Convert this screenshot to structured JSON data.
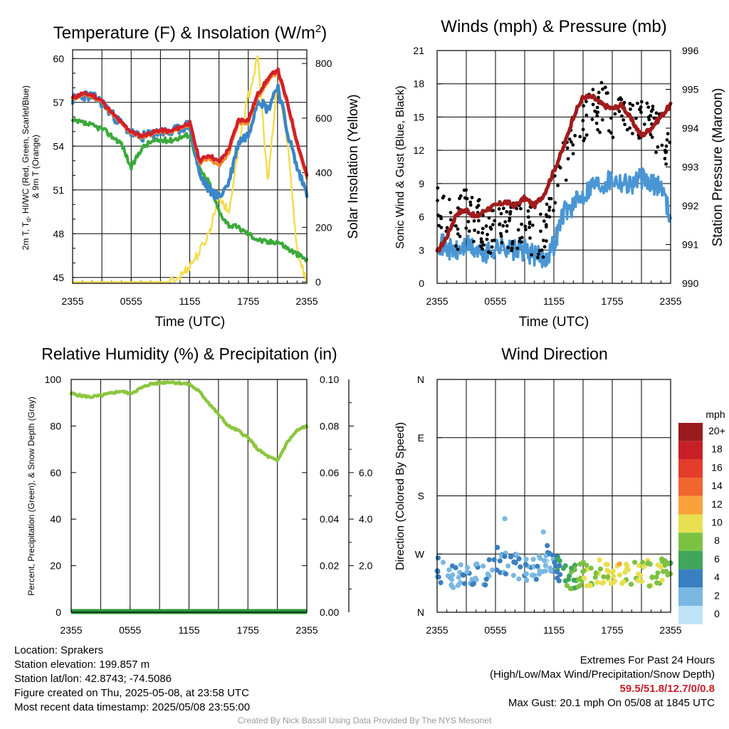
{
  "chart_data": [
    {
      "type": "line",
      "title": "Temperature (F) & Insolation (W/m²)",
      "xlabel": "Time (UTC)",
      "ylabel": "2m T, T_d, HI/WC (Red, Green, Scarlet/Blue) & 9m T (Orange)",
      "y2label": "Solar Insolation (Yellow)",
      "x_ticklabels": [
        "2355",
        "0555",
        "1155",
        "1755",
        "2355"
      ],
      "ylim": [
        44.6,
        60.6
      ],
      "y_ticks": [
        45,
        48,
        51,
        54,
        57,
        60
      ],
      "y2lim": [
        -5,
        850
      ],
      "y2_ticks": [
        0,
        200,
        400,
        600,
        800
      ],
      "x_hours": [
        0,
        1,
        2,
        3,
        4,
        5,
        6,
        7,
        8,
        9,
        10,
        11,
        12,
        13,
        14,
        15,
        16,
        17,
        18,
        19,
        20,
        21,
        22,
        23,
        24
      ],
      "series": [
        {
          "key": "t2m",
          "color": "#d2202a",
          "axis": "left",
          "values": [
            57.3,
            57.6,
            57.5,
            57.1,
            56.3,
            55.6,
            55.0,
            54.7,
            54.9,
            55.1,
            55.0,
            55.3,
            55.6,
            53.0,
            53.4,
            52.9,
            53.8,
            55.8,
            55.8,
            57.6,
            58.6,
            59.3,
            57.0,
            54.3,
            52.0
          ]
        },
        {
          "key": "t9m",
          "color": "#f28c28",
          "axis": "left",
          "values": [
            57.2,
            57.5,
            57.4,
            57.0,
            56.2,
            55.5,
            54.9,
            54.6,
            54.8,
            55.0,
            54.9,
            55.2,
            55.5,
            52.8,
            53.2,
            52.6,
            53.5,
            55.6,
            55.6,
            57.4,
            58.4,
            59.1,
            56.8,
            54.1,
            51.8
          ]
        },
        {
          "key": "hiwc",
          "color": "#3a86c8",
          "axis": "left",
          "values": [
            57.2,
            57.5,
            57.4,
            57.0,
            56.2,
            55.5,
            54.9,
            54.6,
            54.8,
            55.0,
            54.9,
            55.2,
            55.5,
            52.0,
            51.0,
            50.5,
            51.5,
            54.3,
            54.8,
            57.3,
            56.5,
            58.2,
            55.0,
            52.5,
            50.8
          ]
        },
        {
          "key": "td",
          "color": "#3aaa3a",
          "axis": "left",
          "values": [
            55.7,
            55.6,
            55.4,
            55.2,
            54.7,
            54.2,
            52.5,
            53.8,
            54.3,
            54.4,
            54.4,
            54.6,
            54.8,
            52.4,
            51.5,
            49.5,
            48.6,
            48.4,
            48.0,
            47.6,
            47.4,
            47.5,
            47.0,
            46.6,
            46.2
          ]
        },
        {
          "key": "solar",
          "color": "#f5dc50",
          "axis": "right",
          "values": [
            0,
            0,
            0,
            0,
            0,
            0,
            0,
            0,
            0,
            0,
            0,
            20,
            60,
            110,
            180,
            320,
            250,
            500,
            680,
            820,
            360,
            730,
            520,
            120,
            0
          ]
        }
      ]
    },
    {
      "type": "scatter",
      "title": "Winds (mph) & Pressure (mb)",
      "xlabel": "Time (UTC)",
      "ylabel": "Sonic Wind & Gust (Blue, Black)",
      "y2label": "Station Pressure (Maroon)",
      "x_ticklabels": [
        "2355",
        "0555",
        "1155",
        "1755",
        "2355"
      ],
      "ylim": [
        0,
        21
      ],
      "y_ticks": [
        0,
        3,
        6,
        9,
        12,
        15,
        18,
        21
      ],
      "y2lim": [
        990,
        996
      ],
      "y2_ticks": [
        990,
        991,
        992,
        993,
        994,
        995,
        996
      ],
      "x_hours": [
        0,
        1,
        2,
        3,
        4,
        5,
        6,
        7,
        8,
        9,
        10,
        11,
        12,
        13,
        14,
        15,
        16,
        17,
        18,
        19,
        20,
        21,
        22,
        23,
        24
      ],
      "series": [
        {
          "key": "wind",
          "color": "#4a96d4",
          "axis": "left",
          "values": [
            3.8,
            3.2,
            2.8,
            3.4,
            3.0,
            2.6,
            3.2,
            3.4,
            2.9,
            3.0,
            2.5,
            2.2,
            3.5,
            6.5,
            7.0,
            8.0,
            9.0,
            9.0,
            9.5,
            9.2,
            9.0,
            9.5,
            8.8,
            9.0,
            6.0
          ]
        },
        {
          "key": "gust",
          "color": "#000000",
          "axis": "left",
          "values": [
            6.5,
            5.5,
            5.0,
            7.0,
            5.5,
            5.0,
            4.5,
            5.5,
            5.0,
            5.0,
            4.5,
            4.0,
            7.5,
            11.0,
            13.0,
            15.0,
            15.5,
            16.0,
            14.5,
            15.0,
            14.0,
            14.5,
            15.0,
            13.0,
            12.0
          ]
        },
        {
          "key": "pressure",
          "color": "#a01c1c",
          "axis": "right",
          "values": [
            990.8,
            991.2,
            991.8,
            991.9,
            991.7,
            991.9,
            992.0,
            992.1,
            992.0,
            992.2,
            992.0,
            992.3,
            992.9,
            993.5,
            994.3,
            994.8,
            994.8,
            994.6,
            994.5,
            994.6,
            994.2,
            993.8,
            994.0,
            994.3,
            994.6
          ]
        }
      ]
    },
    {
      "type": "line",
      "title": "Relative Humidity (%) & Precipitation (in)",
      "ylabel": "Percent, Precipitation (Green), & Snow Depth (Gray)",
      "x_ticklabels": [
        "2355",
        "0555",
        "1155",
        "1755",
        "2355"
      ],
      "ylim": [
        0,
        100
      ],
      "y_ticks": [
        0,
        20,
        40,
        60,
        80,
        100
      ],
      "y2lim": [
        0,
        0.1
      ],
      "y2_ticklabels": [
        "0.00",
        "0.02",
        "0.04",
        "0.06",
        "0.08",
        "0.10"
      ],
      "y3lim": [
        0,
        10
      ],
      "y3_ticklabels": [
        "2.0",
        "4.0",
        "6.0"
      ],
      "x_hours": [
        0,
        1,
        2,
        3,
        4,
        5,
        6,
        7,
        8,
        9,
        10,
        11,
        12,
        13,
        14,
        15,
        16,
        17,
        18,
        19,
        20,
        21,
        22,
        23,
        24
      ],
      "series": [
        {
          "key": "rh",
          "color": "#8cc63f",
          "axis": "left",
          "values": [
            94,
            93,
            92.5,
            93,
            94,
            95,
            94,
            96,
            98,
            98.5,
            99,
            98.5,
            98,
            95,
            90,
            85,
            80,
            78,
            75,
            70,
            67,
            65,
            73,
            78,
            80
          ]
        },
        {
          "key": "precip",
          "color": "#2a9a3a",
          "axis": "right",
          "values": [
            0.0,
            0.0
          ]
        }
      ]
    },
    {
      "type": "scatter",
      "title": "Wind Direction",
      "ylabel": "Direction (Colored By Speed)",
      "x_ticklabels": [
        "2355",
        "0555",
        "1155",
        "1755",
        "2355"
      ],
      "y_ticklabels": [
        "N",
        "E",
        "S",
        "W",
        "N"
      ],
      "ylim": [
        0,
        360
      ],
      "colorbar": {
        "title": "mph",
        "labels": [
          "20+",
          "18",
          "16",
          "14",
          "12",
          "10",
          "8",
          "6",
          "4",
          "2",
          "0"
        ],
        "colors": [
          "#9a1a1e",
          "#c62026",
          "#e43d2c",
          "#f0662e",
          "#f9a23c",
          "#e8e050",
          "#7cc242",
          "#3fa65a",
          "#3a7fbf",
          "#7ab8e2",
          "#bfe3f7"
        ]
      },
      "x_hours": [
        0,
        1,
        2,
        3,
        4,
        5,
        6,
        7,
        8,
        9,
        10,
        11,
        12,
        13,
        14,
        15,
        16,
        17,
        18,
        19,
        20,
        21,
        22,
        23,
        24
      ],
      "dir_values": [
        292,
        300,
        310,
        300,
        305,
        300,
        275,
        285,
        290,
        290,
        295,
        275,
        285,
        300,
        305,
        300,
        300,
        298,
        300,
        298,
        297,
        298,
        300,
        296,
        295
      ],
      "speed_values": [
        3.5,
        3,
        2.5,
        3.5,
        3,
        2.5,
        2.5,
        3,
        2.8,
        2.8,
        2.5,
        2,
        3.5,
        7,
        7.5,
        8,
        9,
        9,
        10,
        10,
        9.5,
        9.5,
        8.5,
        8.5,
        7
      ]
    }
  ],
  "info": {
    "location": "Location: Sprakers",
    "elevation": "Station elevation: 199.857 m",
    "latlon": "Station lat/lon: 42.8743; -74.5086",
    "created": "Figure created on Thu, 2025-05-08, at 23:58 UTC",
    "recent": "Most recent data timestamp: 2025/05/08 23:55:00"
  },
  "extremes": {
    "title": "Extremes For Past 24 Hours",
    "subtitle": "(High/Low/Max Wind/Precipitation/Snow Depth)",
    "values": "59.5/51.8/12.7/0/0.8",
    "max_gust": "Max Gust: 20.1 mph On 05/08 at 1845 UTC"
  },
  "credit": "Created By Nick Bassill Using Data Provided By The NYS Mesonet"
}
